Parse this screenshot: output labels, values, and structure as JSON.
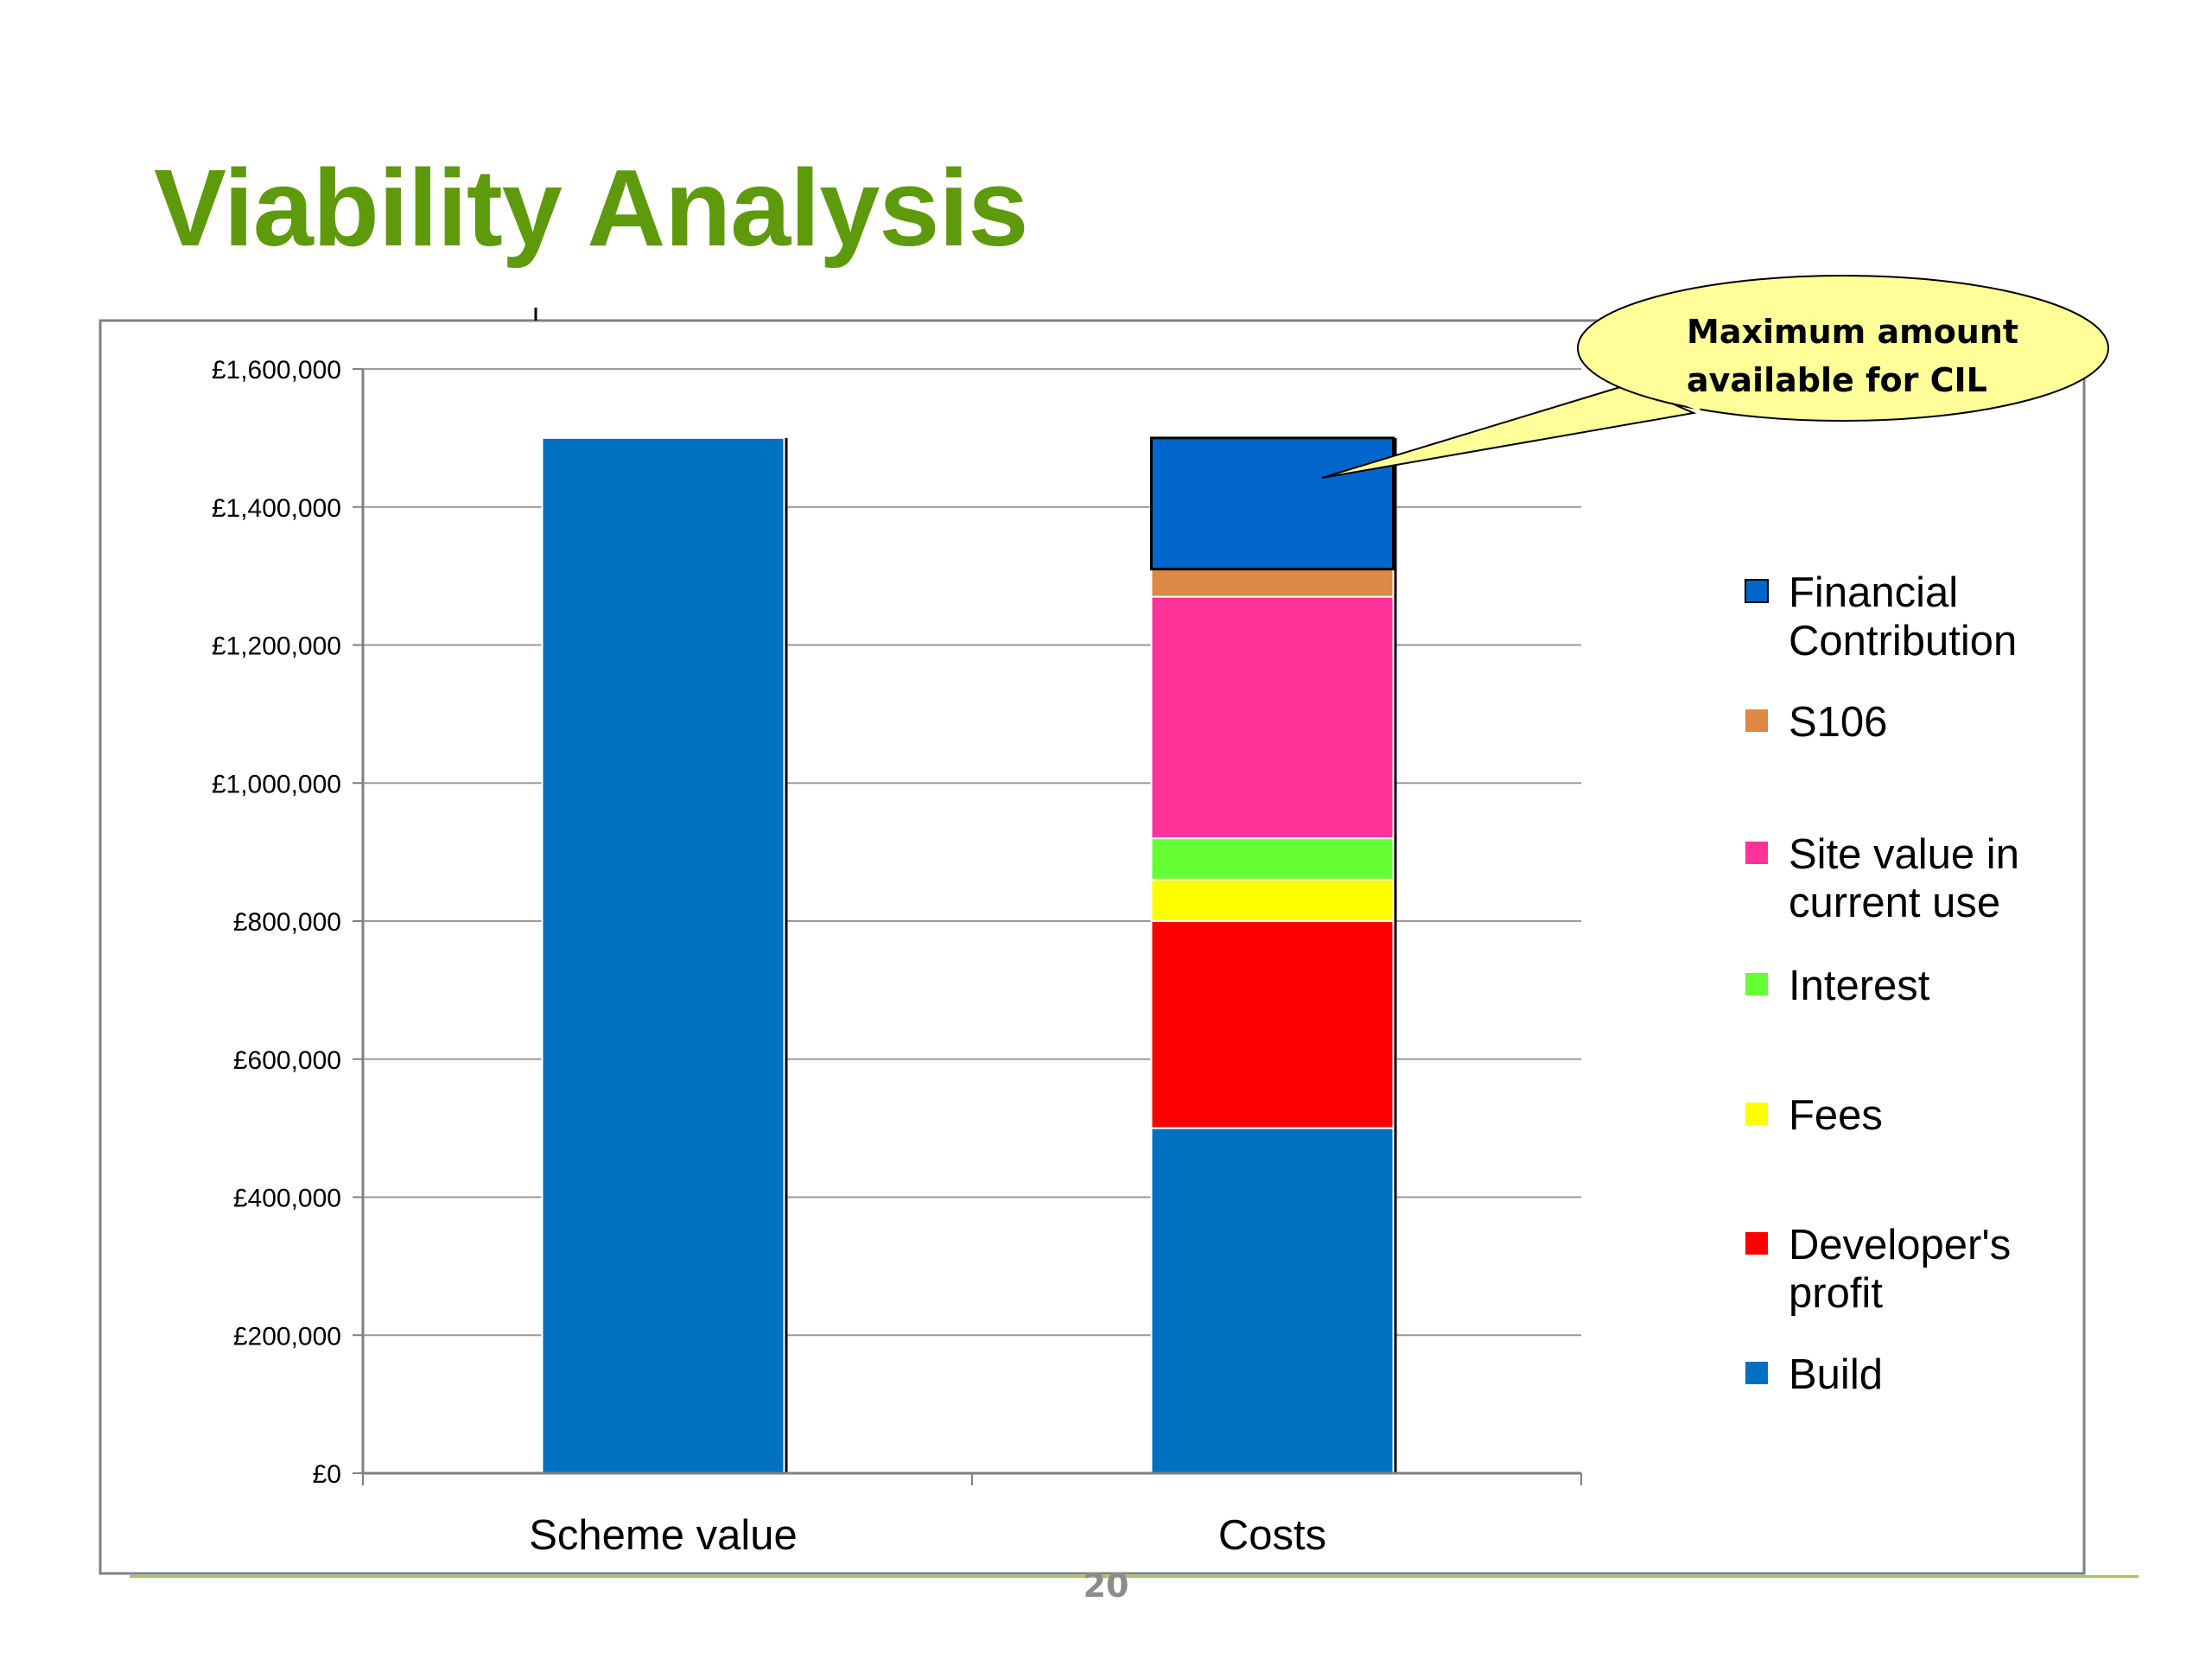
{
  "slide": {
    "title": "Viability Analysis",
    "page_number": "20"
  },
  "callout": {
    "line1": "Maximum amount",
    "line2": "available for CIL",
    "fill": "#ffff99"
  },
  "chart_data": {
    "type": "bar",
    "stacked": true,
    "categories": [
      "Scheme value",
      "Costs"
    ],
    "ylim": [
      0,
      1600000
    ],
    "yticks": [
      0,
      200000,
      400000,
      600000,
      800000,
      1000000,
      1200000,
      1400000,
      1600000
    ],
    "ytick_labels": [
      "£0",
      "£200,000",
      "£400,000",
      "£600,000",
      "£800,000",
      "£1,000,000",
      "£1,200,000",
      "£1,400,000",
      "£1,600,000"
    ],
    "grid": true,
    "legend_position": "right",
    "series": [
      {
        "name": "Build",
        "color": "#0070c0",
        "values": [
          1500000,
          500000
        ]
      },
      {
        "name": "Developer's profit",
        "color": "#ff0000",
        "values": [
          0,
          300000
        ]
      },
      {
        "name": "Fees",
        "color": "#ffff00",
        "values": [
          0,
          60000
        ]
      },
      {
        "name": "Interest",
        "color": "#66ff33",
        "values": [
          0,
          60000
        ]
      },
      {
        "name": "Site value in current use",
        "color": "#ff3399",
        "values": [
          0,
          350000
        ]
      },
      {
        "name": "S106",
        "color": "#dd8844",
        "values": [
          0,
          40000
        ]
      },
      {
        "name": "Financial Contribution",
        "color": "#0066cc",
        "values": [
          0,
          190000
        ]
      }
    ],
    "legend_entries": [
      {
        "lines": [
          "Financial",
          "Contribution"
        ],
        "color": "#0066cc"
      },
      {
        "lines": [
          "S106"
        ],
        "color": "#dd8844"
      },
      {
        "lines": [
          "Site value in",
          "current use"
        ],
        "color": "#ff3399"
      },
      {
        "lines": [
          "Interest"
        ],
        "color": "#66ff33"
      },
      {
        "lines": [
          "Fees"
        ],
        "color": "#ffff00"
      },
      {
        "lines": [
          "Developer's",
          "profit"
        ],
        "color": "#ff0000"
      },
      {
        "lines": [
          "Build"
        ],
        "color": "#0070c0"
      }
    ]
  }
}
